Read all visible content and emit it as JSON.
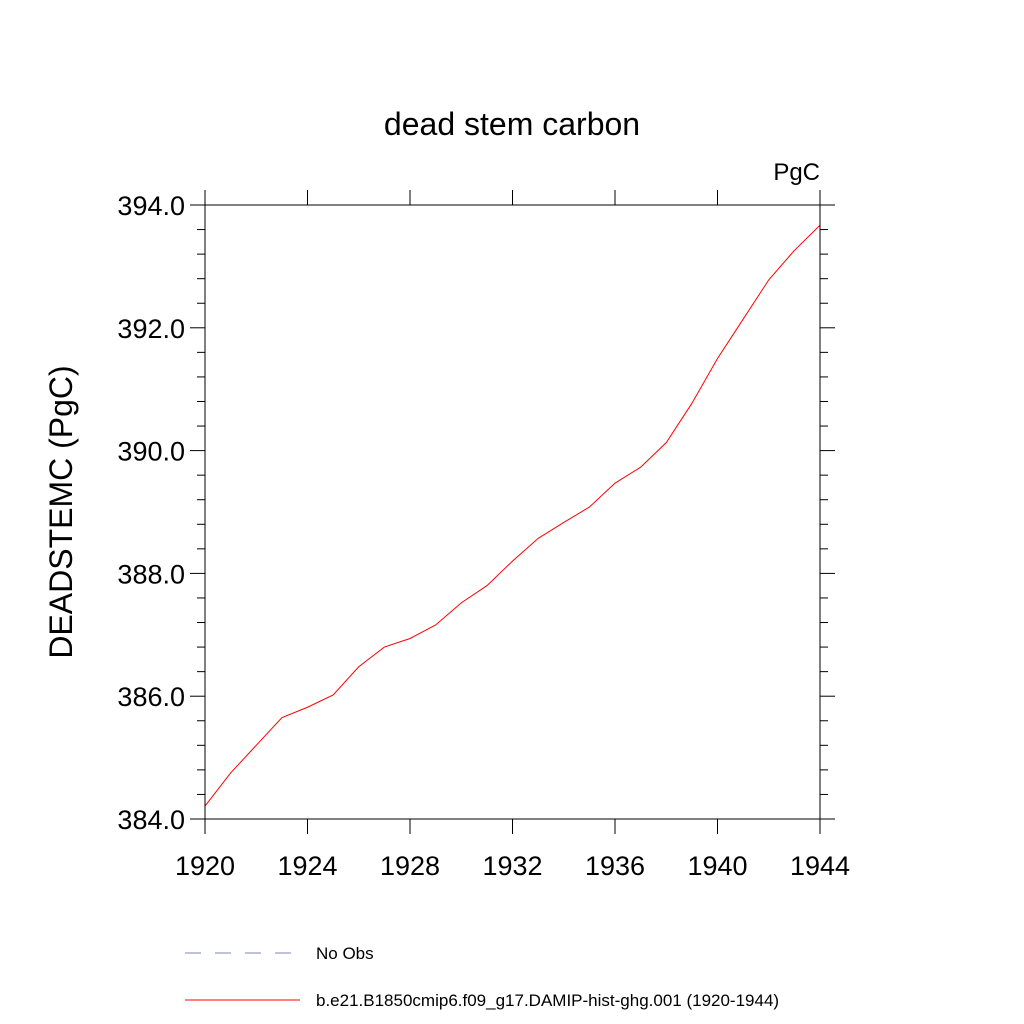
{
  "chart_data": {
    "type": "line",
    "title": "dead stem carbon",
    "units_label": "PgC",
    "ylabel": "DEADSTEMC  (PgC)",
    "xlabel": "",
    "xlim": [
      1920,
      1944
    ],
    "ylim": [
      384.0,
      394.0
    ],
    "x_ticks": [
      "1920",
      "1924",
      "1928",
      "1932",
      "1936",
      "1940",
      "1944"
    ],
    "y_ticks": [
      "384.0",
      "386.0",
      "388.0",
      "390.0",
      "392.0",
      "394.0"
    ],
    "grid": false,
    "series": [
      {
        "name": "b.e21.B1850cmip6.f09_g17.DAMIP-hist-ghg.001 (1920-1944)",
        "color": "#ff0000",
        "style": "solid",
        "x": [
          1920,
          1921,
          1922,
          1923,
          1924,
          1925,
          1926,
          1927,
          1928,
          1929,
          1930,
          1931,
          1932,
          1933,
          1934,
          1935,
          1936,
          1937,
          1938,
          1939,
          1940,
          1941,
          1942,
          1943,
          1944
        ],
        "values": [
          384.21,
          384.75,
          385.2,
          385.65,
          385.82,
          386.02,
          386.48,
          386.8,
          386.94,
          387.16,
          387.52,
          387.8,
          388.2,
          388.57,
          388.83,
          389.08,
          389.47,
          389.73,
          390.13,
          390.77,
          391.5,
          392.14,
          392.78,
          393.26,
          393.67
        ]
      },
      {
        "name": "No Obs",
        "color": "#8080c0",
        "style": "dashed",
        "x": [],
        "values": []
      }
    ],
    "legend": {
      "position": "bottom-left",
      "entries": [
        "No Obs",
        "b.e21.B1850cmip6.f09_g17.DAMIP-hist-ghg.001 (1920-1944)"
      ]
    }
  }
}
